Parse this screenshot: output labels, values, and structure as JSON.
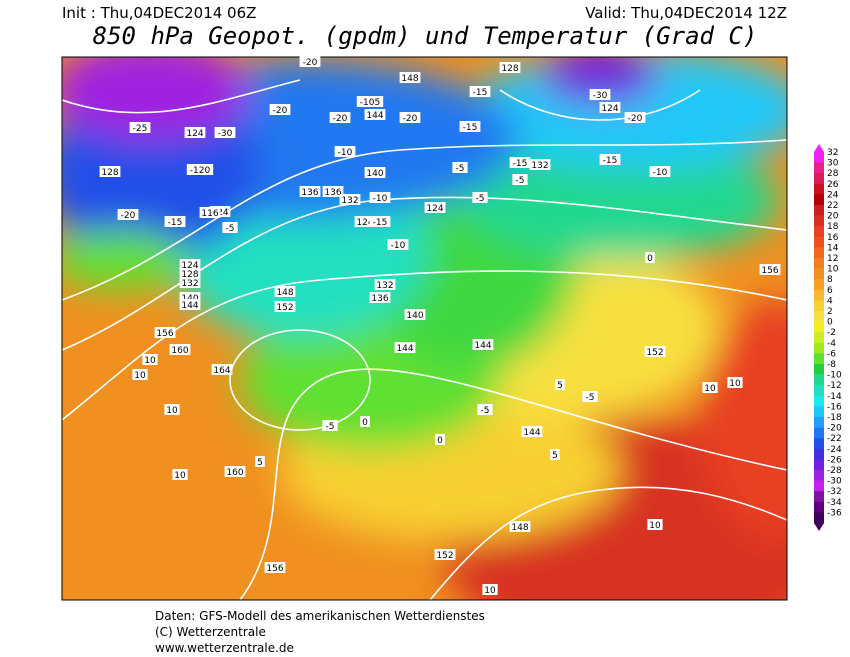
{
  "header": {
    "init": "Init : Thu,04DEC2014 06Z",
    "valid": "Valid: Thu,04DEC2014 12Z",
    "title": "850 hPa Geopot. (gpdm) und Temperatur (Grad C)"
  },
  "legend": {
    "values": [
      32,
      30,
      28,
      26,
      24,
      22,
      20,
      18,
      16,
      14,
      12,
      10,
      8,
      6,
      4,
      2,
      0,
      -2,
      -4,
      -6,
      -8,
      -10,
      -12,
      -14,
      -16,
      -18,
      -20,
      -22,
      -24,
      -26,
      -28,
      -30,
      -32,
      -34,
      -36
    ],
    "colors": [
      "#f020f0",
      "#e8208a",
      "#d81e5a",
      "#c81020",
      "#b40000",
      "#c81e1e",
      "#d83020",
      "#e84020",
      "#f05020",
      "#f06820",
      "#f08020",
      "#f09020",
      "#f8a020",
      "#f8b830",
      "#f8d030",
      "#f8e040",
      "#f0f020",
      "#c8f020",
      "#a0e820",
      "#60e030",
      "#20d040",
      "#20d890",
      "#20e0c0",
      "#20e8f0",
      "#20c8f8",
      "#20a0f8",
      "#2078f0",
      "#2050e8",
      "#4030e0",
      "#7020e0",
      "#a020e0",
      "#c820f0",
      "#8010a0",
      "#600080",
      "#400060"
    ]
  },
  "map_labels": [
    "148",
    "128",
    "-15",
    "-20",
    "-30",
    "124",
    "-20",
    "-25",
    "124",
    "-30",
    "-20",
    "144",
    "-105",
    "-20",
    "-20",
    "-15",
    "-10",
    "-5",
    "-15",
    "-10",
    "-5",
    "132",
    "-15",
    "124",
    "128",
    "-120",
    "-20",
    "-15",
    "116",
    "-5",
    "136",
    "136",
    "132",
    "140",
    "-10",
    "124",
    "-5",
    "-10",
    "124",
    "-15",
    "132",
    "136",
    "140",
    "144",
    "148",
    "152",
    "156",
    "124",
    "128",
    "132",
    "140",
    "144",
    "152",
    "156",
    "160",
    "164",
    "10",
    "10",
    "10",
    "160",
    "5",
    "156",
    "10",
    "0",
    "-5",
    "0",
    "-5",
    "144",
    "148",
    "152",
    "10",
    "10",
    "-5",
    "5",
    "10",
    "10",
    "5",
    "0",
    "144"
  ],
  "footer": {
    "line1": "Daten: GFS-Modell des amerikanischen Wetterdienstes",
    "line2": "(C) Wetterzentrale",
    "line3": "www.wetterzentrale.de"
  }
}
